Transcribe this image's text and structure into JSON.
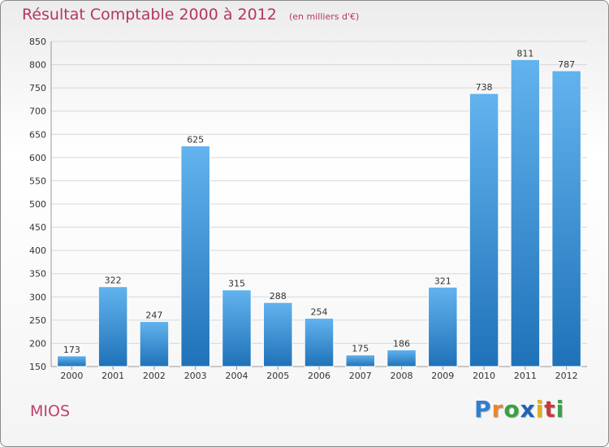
{
  "chart_data": {
    "type": "bar",
    "title": "Résultat Comptable 2000 à 2012",
    "unit_label": "(en milliers d'€)",
    "categories": [
      "2000",
      "2001",
      "2002",
      "2003",
      "2004",
      "2005",
      "2006",
      "2007",
      "2008",
      "2009",
      "2010",
      "2011",
      "2012"
    ],
    "values": [
      173,
      322,
      247,
      625,
      315,
      288,
      254,
      175,
      186,
      321,
      738,
      811,
      787
    ],
    "ylim": [
      150,
      850
    ],
    "yticks": [
      150,
      200,
      250,
      300,
      350,
      400,
      450,
      500,
      550,
      600,
      650,
      700,
      750,
      800,
      850
    ],
    "grid": true,
    "xlabel": "",
    "ylabel": ""
  },
  "commune": "MIOS",
  "brand": {
    "letters": [
      "P",
      "r",
      "o",
      "x",
      "i",
      "t",
      "i"
    ],
    "colors": [
      "#2e7fd0",
      "#e8862a",
      "#3aa046",
      "#1f63b6",
      "#e0b020",
      "#c73b3b",
      "#3aa046"
    ]
  },
  "colors": {
    "title": "#b5365f",
    "bar_top": "#62b3ee",
    "bar_bottom": "#1f72b8",
    "grid": "#d7d7d7",
    "axis_text": "#333333"
  }
}
